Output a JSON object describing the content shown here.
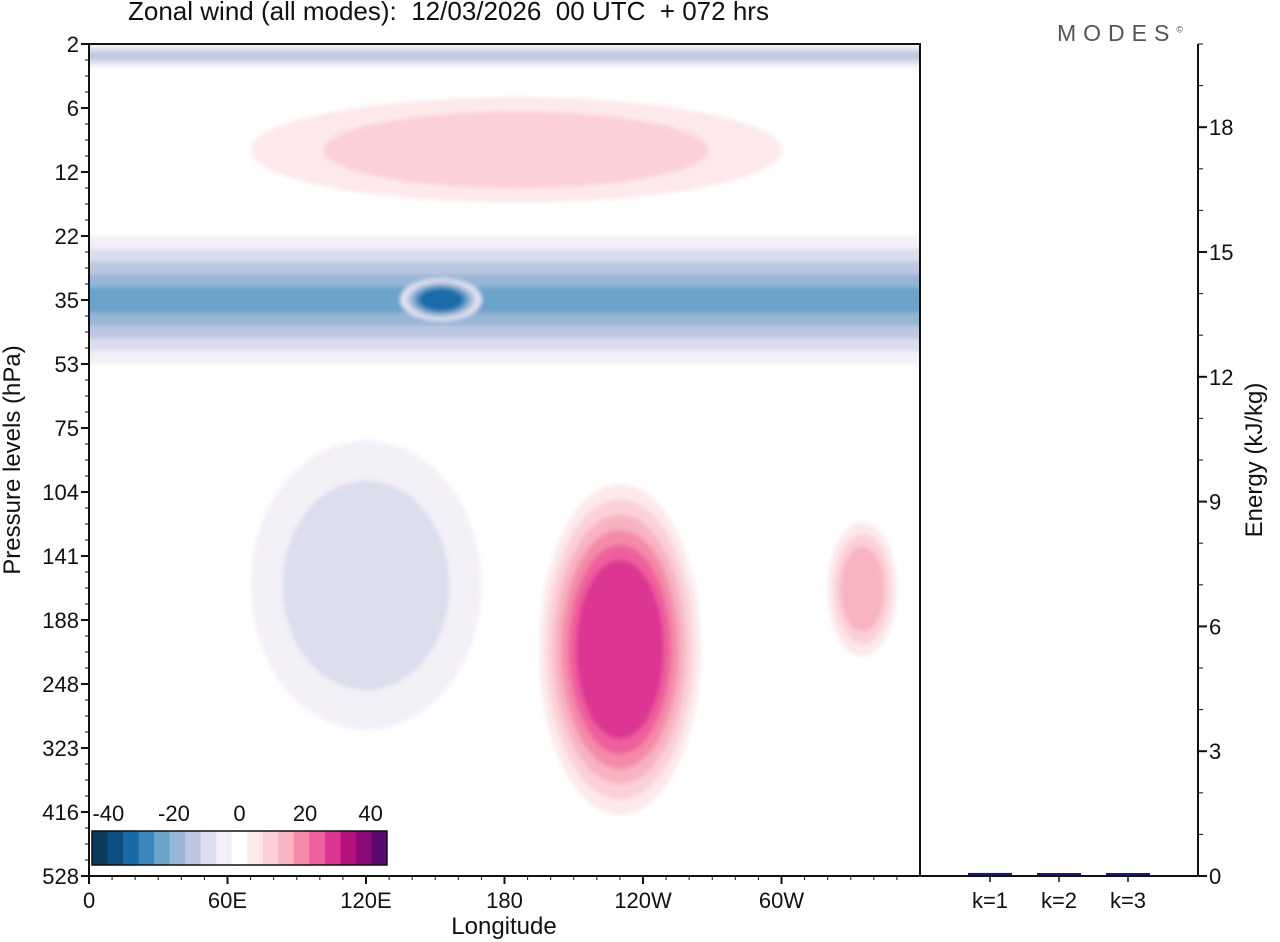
{
  "header": {
    "title": "Zonal wind (all modes):  12/03/2026  00 UTC  + 072 hrs",
    "brand": "MODES",
    "brand_mark": "©"
  },
  "chart_data": [
    {
      "type": "heatmap",
      "title": "Zonal wind (all modes):  12/03/2026  00 UTC  + 072 hrs",
      "xlabel": "Longitude",
      "ylabel": "Pressure levels (hPa)",
      "x_ticks": [
        "0",
        "60E",
        "120E",
        "180",
        "120W",
        "60W"
      ],
      "y_ticks": [
        "2",
        "6",
        "12",
        "22",
        "35",
        "53",
        "75",
        "104",
        "141",
        "188",
        "248",
        "323",
        "416",
        "528"
      ],
      "xlim_deg_east": [
        0,
        360
      ],
      "colorbar": {
        "labels": [
          "-40",
          "-20",
          "0",
          "20",
          "40"
        ],
        "range": [
          -45,
          45
        ],
        "colors": [
          "#0b3a5c",
          "#0e4f82",
          "#1a6aa8",
          "#3d86bb",
          "#6aa2c9",
          "#97b6d6",
          "#bcc6e0",
          "#dcdeee",
          "#f4f0f7",
          "#ffffff",
          "#fde8ea",
          "#fbd0d6",
          "#f8b3bf",
          "#f48aa8",
          "#ef5f9d",
          "#dc3592",
          "#b5127f",
          "#8c0a79",
          "#5c0870"
        ]
      },
      "features": [
        {
          "name": "Stratospheric easterly band",
          "x_deg": [
            0,
            360
          ],
          "p_hpa": [
            22,
            53
          ],
          "u_ms": -25
        },
        {
          "name": "Strongest easterly core",
          "x_deg": [
            135,
            170
          ],
          "p_hpa": [
            30,
            40
          ],
          "u_ms": -33
        },
        {
          "name": "Upper weak westerlies",
          "x_deg": [
            70,
            300
          ],
          "p_hpa": [
            5,
            16
          ],
          "u_ms": 9
        },
        {
          "name": "Upper easterlies",
          "x_deg": [
            0,
            360
          ],
          "p_hpa": [
            2,
            3
          ],
          "u_ms": -12
        },
        {
          "name": "Tropospheric westerly jet",
          "x_deg": [
            195,
            265
          ],
          "p_hpa": [
            100,
            420
          ],
          "u_ms": 28
        },
        {
          "name": "Secondary westerly maximum",
          "x_deg": [
            320,
            350
          ],
          "p_hpa": [
            120,
            220
          ],
          "u_ms": 11
        },
        {
          "name": "Weak easterlies",
          "x_deg": [
            70,
            170
          ],
          "p_hpa": [
            80,
            300
          ],
          "u_ms": -8
        }
      ]
    },
    {
      "type": "bar",
      "categories": [
        "k=1",
        "k=2",
        "k=3"
      ],
      "values": [
        0.05,
        0.03,
        0.02
      ],
      "ylabel": "Energy (kJ/kg)",
      "y_ticks": [
        "0",
        "3",
        "6",
        "9",
        "12",
        "15",
        "18"
      ],
      "ylim": [
        0,
        20
      ]
    }
  ]
}
